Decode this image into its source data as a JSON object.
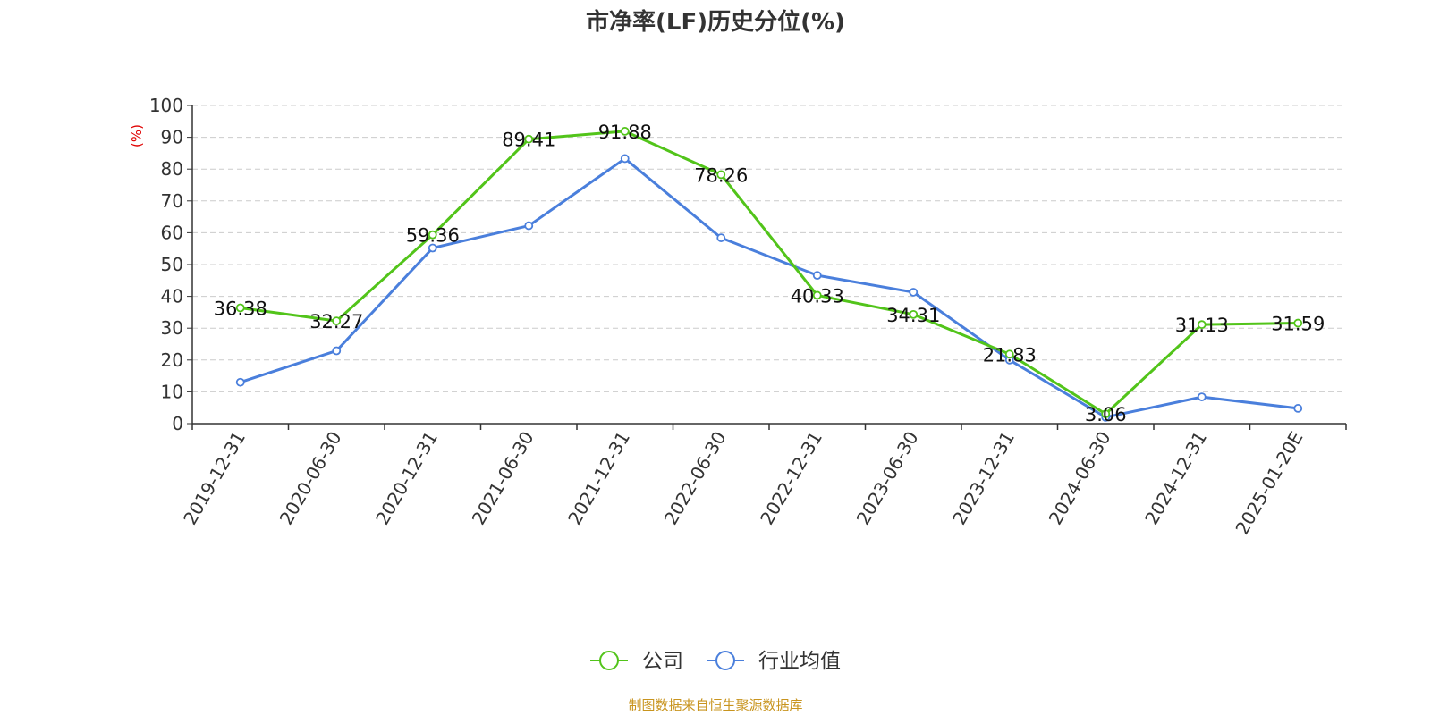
{
  "chart_data": {
    "type": "line",
    "title": "市净率(LF)历史分位(%)",
    "ylabel": "(%)",
    "xlabel": "",
    "ylim": [
      0,
      100
    ],
    "yticks": [
      0,
      10,
      20,
      30,
      40,
      50,
      60,
      70,
      80,
      90,
      100
    ],
    "grid": true,
    "legend_position": "bottom-center",
    "categories": [
      "2019-12-31",
      "2020-06-30",
      "2020-12-31",
      "2021-06-30",
      "2021-12-31",
      "2022-06-30",
      "2022-12-31",
      "2023-06-30",
      "2023-12-31",
      "2024-06-30",
      "2024-12-31",
      "2025-01-20E"
    ],
    "series": [
      {
        "name": "公司",
        "color": "#52c41a",
        "values": [
          36.38,
          32.27,
          59.36,
          89.41,
          91.88,
          78.26,
          40.33,
          34.31,
          21.83,
          3.06,
          31.13,
          31.59
        ],
        "labels": [
          "36.38",
          "32.27",
          "59.36",
          "89.41",
          "91.88",
          "78.26",
          "40.33",
          "34.31",
          "21.83",
          "3.06",
          "31.13",
          "31.59"
        ]
      },
      {
        "name": "行业均值",
        "color": "#4a7fdc",
        "values": [
          13.0,
          22.9,
          55.2,
          62.2,
          83.3,
          58.4,
          46.6,
          41.3,
          20.0,
          2.0,
          8.4,
          4.8
        ]
      }
    ],
    "source": "制图数据来自恒生聚源数据库"
  }
}
